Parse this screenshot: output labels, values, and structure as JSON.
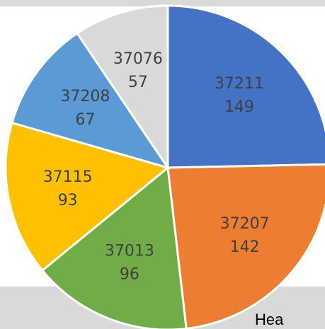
{
  "chart_data": {
    "type": "pie",
    "categories": [
      "37211",
      "37207",
      "37013",
      "37115",
      "37208",
      "37076"
    ],
    "values": [
      149,
      142,
      96,
      93,
      67,
      57
    ],
    "colors": [
      "#4472c4",
      "#ed7d31",
      "#70ad47",
      "#ffc000",
      "#5b9bd5",
      "#d9d9d9"
    ]
  },
  "footer_text": "Hea"
}
